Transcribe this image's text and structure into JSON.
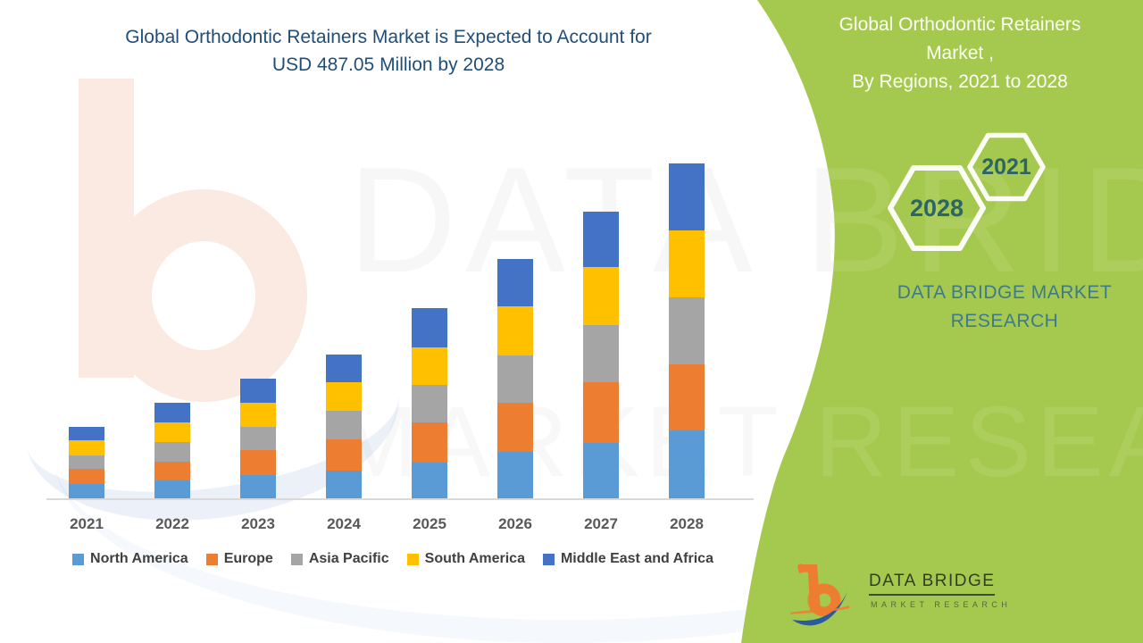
{
  "page": {
    "background": "#FFFFFF",
    "accent_green": "#A5C94E"
  },
  "header": {
    "title_line1": "Global Orthodontic Retainers Market is Expected to Account for",
    "title_line2": "USD 487.05 Million by 2028",
    "title_color": "#1F4E79"
  },
  "side_panel": {
    "title_line1": "Global Orthodontic Retainers Market ,",
    "title_line2": "By Regions, 2021 to 2028",
    "hexagon_back_label": "2028",
    "hexagon_front_label": "2021",
    "brand_text": "DATA BRIDGE MARKET RESEARCH",
    "text_color": "#3E7A8C"
  },
  "footer_logo": {
    "name_text": "DATA BRIDGE",
    "sub_text": "MARKET RESEARCH"
  },
  "watermark": {
    "line1": "DATA BRIDGE",
    "line2": "MARKET RESEARCH"
  },
  "chart_data": {
    "type": "bar",
    "subtype": "stacked-vertical",
    "title": "Global Orthodontic Retainers Market is Expected to Account for USD 487.05 Million by 2028",
    "unit": "USD Million",
    "categories": [
      "2021",
      "2022",
      "2023",
      "2024",
      "2025",
      "2026",
      "2027",
      "2028"
    ],
    "series": [
      {
        "name": "North America",
        "color": "#5B9BD5",
        "values": [
          20.8,
          26.0,
          33.8,
          40.3,
          52.0,
          67.5,
          80.5,
          98.7
        ]
      },
      {
        "name": "Europe",
        "color": "#ED7D31",
        "values": [
          22.1,
          27.3,
          36.4,
          45.5,
          58.4,
          71.4,
          88.3,
          96.1
        ]
      },
      {
        "name": "Asia Pacific",
        "color": "#A5A5A5",
        "values": [
          19.5,
          28.6,
          33.8,
          41.6,
          54.6,
          68.8,
          83.1,
          97.4
        ]
      },
      {
        "name": "South America",
        "color": "#FFC000",
        "values": [
          22.1,
          28.6,
          35.1,
          41.6,
          54.6,
          71.4,
          84.4,
          97.4
        ]
      },
      {
        "name": "Middle East and Africa",
        "color": "#4472C4",
        "values": [
          19.5,
          28.6,
          35.1,
          40.3,
          57.1,
          68.8,
          80.5,
          97.4
        ]
      }
    ],
    "estimated_totals": [
      104.0,
      139.1,
      174.2,
      209.3,
      276.7,
      347.9,
      416.8,
      487.05
    ],
    "highlight_value": "USD 487.05 Million by 2028",
    "xlabel": "",
    "ylabel": "",
    "ylim": [
      0,
      490
    ],
    "y_axis_shown": false,
    "gridlines": false,
    "legend_position": "bottom"
  }
}
